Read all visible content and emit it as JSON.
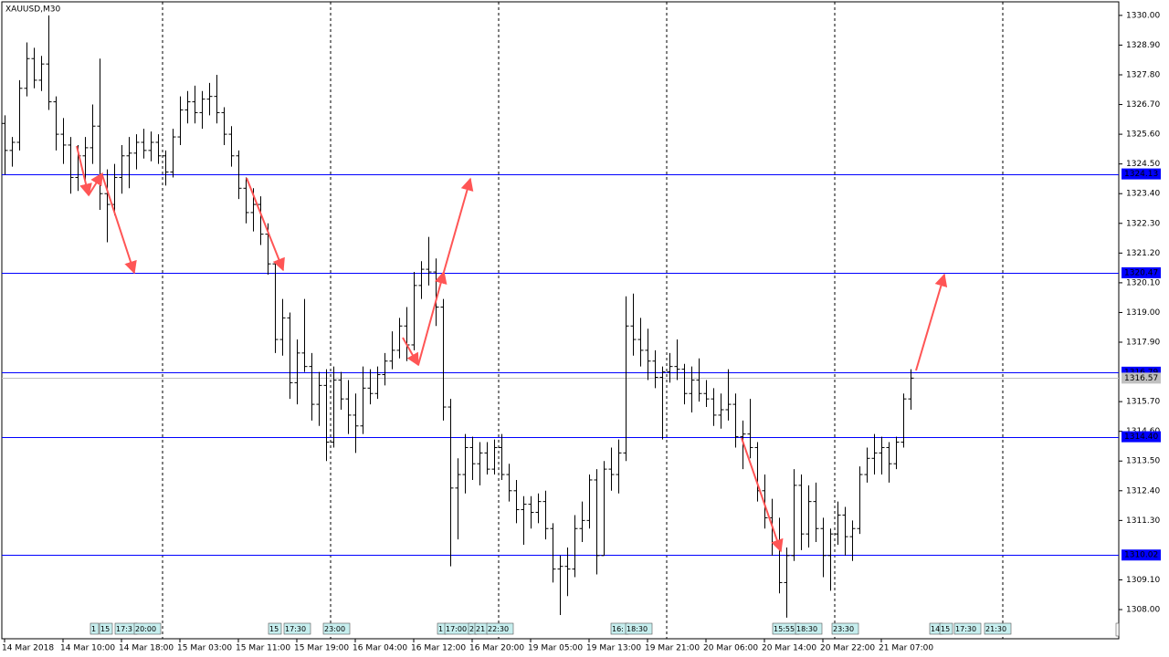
{
  "chart_data": {
    "type": "ohlc",
    "title": "XAUUSD,M30",
    "xlim": [
      -0.375,
      152.5
    ],
    "ylim": [
      1306.92,
      1330.57
    ],
    "xticks": [
      {
        "value": 0,
        "label": "14 Mar 2018"
      },
      {
        "value": 8,
        "label": "14 Mar 10:00"
      },
      {
        "value": 16,
        "label": "14 Mar 18:00"
      },
      {
        "value": 24,
        "label": "15 Mar 03:00"
      },
      {
        "value": 32,
        "label": "15 Mar 11:00"
      },
      {
        "value": 40,
        "label": "15 Mar 19:00"
      },
      {
        "value": 48,
        "label": "16 Mar 04:00"
      },
      {
        "value": 56,
        "label": "16 Mar 12:00"
      },
      {
        "value": 64,
        "label": "16 Mar 20:00"
      },
      {
        "value": 72,
        "label": "19 Mar 05:00"
      },
      {
        "value": 80,
        "label": "19 Mar 13:00"
      },
      {
        "value": 88,
        "label": "19 Mar 21:00"
      },
      {
        "value": 96,
        "label": "20 Mar 06:00"
      },
      {
        "value": 104,
        "label": "20 Mar 14:00"
      },
      {
        "value": 112,
        "label": "20 Mar 22:00"
      },
      {
        "value": 120,
        "label": "21 Mar 07:00"
      }
    ],
    "yticks": [
      {
        "value": 1330,
        "label": "1330.00"
      },
      {
        "value": 1328.9,
        "label": "1328.90"
      },
      {
        "value": 1327.8,
        "label": "1327.80"
      },
      {
        "value": 1326.7,
        "label": "1326.70"
      },
      {
        "value": 1325.6,
        "label": "1325.60"
      },
      {
        "value": 1324.5,
        "label": "1324.50"
      },
      {
        "value": 1323.4,
        "label": "1323.40"
      },
      {
        "value": 1322.3,
        "label": "1322.30"
      },
      {
        "value": 1321.2,
        "label": "1321.20"
      },
      {
        "value": 1320.1,
        "label": "1320.10"
      },
      {
        "value": 1319,
        "label": "1319.00"
      },
      {
        "value": 1317.9,
        "label": "1317.90"
      },
      {
        "value": 1315.7,
        "label": "1315.70"
      },
      {
        "value": 1314.6,
        "label": "1314.60"
      },
      {
        "value": 1313.5,
        "label": "1313.50"
      },
      {
        "value": 1312.4,
        "label": "1312.40"
      },
      {
        "value": 1311.3,
        "label": "1311.30"
      },
      {
        "value": 1309.1,
        "label": "1309.10"
      },
      {
        "value": 1308,
        "label": "1308.00"
      }
    ],
    "levels": [
      {
        "value": 1324.13,
        "label": "1324.13"
      },
      {
        "value": 1320.47,
        "label": "1320.47"
      },
      {
        "value": 1316.79,
        "label": "1316.79"
      },
      {
        "value": 1314.4,
        "label": "1314.40"
      },
      {
        "value": 1310.02,
        "label": "1310.02"
      }
    ],
    "level_color": "#0000ff",
    "bid": {
      "value": 1316.57,
      "label": "1316.57"
    },
    "bid_color": "#c0c0c0",
    "bar_color": "#000000",
    "events": [
      "1",
      "15",
      "17:3",
      "20:00",
      "15",
      "17:30",
      "23:00",
      "1",
      "17:00",
      "2",
      "21",
      "22:30",
      "16:",
      "18:30",
      "15:55",
      "18:30",
      "23:30",
      "14",
      "15",
      "17:30",
      "21:30"
    ],
    "bars": [
      [
        1326.0,
        1326.3,
        1324.1,
        1325.0
      ],
      [
        1325.0,
        1325.5,
        1324.4,
        1325.3
      ],
      [
        1325.3,
        1327.6,
        1325.0,
        1327.3
      ],
      [
        1327.3,
        1329.0,
        1327.0,
        1328.4
      ],
      [
        1328.4,
        1328.8,
        1327.3,
        1327.6
      ],
      [
        1327.6,
        1328.5,
        1327.2,
        1328.2
      ],
      [
        1328.2,
        1330.0,
        1326.5,
        1326.8
      ],
      [
        1326.8,
        1327.0,
        1325.0,
        1325.6
      ],
      [
        1325.6,
        1326.2,
        1324.5,
        1325.2
      ],
      [
        1325.2,
        1325.5,
        1323.4,
        1324.0
      ],
      [
        1324.0,
        1325.2,
        1323.5,
        1324.8
      ],
      [
        1324.8,
        1325.5,
        1323.8,
        1325.1
      ],
      [
        1325.1,
        1326.7,
        1324.5,
        1325.9
      ],
      [
        1325.9,
        1328.4,
        1322.8,
        1323.4
      ],
      [
        1323.4,
        1324.3,
        1321.6,
        1323.0
      ],
      [
        1323.0,
        1324.5,
        1322.6,
        1324.0
      ],
      [
        1324.0,
        1325.2,
        1323.4,
        1324.8
      ],
      [
        1324.8,
        1325.5,
        1323.6,
        1324.9
      ],
      [
        1324.9,
        1325.6,
        1324.3,
        1325.3
      ],
      [
        1325.3,
        1325.8,
        1324.7,
        1325.0
      ],
      [
        1325.0,
        1325.7,
        1324.6,
        1325.3
      ],
      [
        1325.3,
        1325.6,
        1324.5,
        1324.8
      ],
      [
        1324.8,
        1325.0,
        1323.7,
        1324.2
      ],
      [
        1324.2,
        1325.8,
        1324.0,
        1325.5
      ],
      [
        1325.5,
        1327.0,
        1325.2,
        1326.5
      ],
      [
        1326.5,
        1327.2,
        1326.0,
        1326.8
      ],
      [
        1326.8,
        1327.4,
        1326.0,
        1326.4
      ],
      [
        1326.4,
        1327.2,
        1325.8,
        1326.9
      ],
      [
        1326.9,
        1327.5,
        1326.3,
        1327.0
      ],
      [
        1327.0,
        1327.8,
        1326.0,
        1326.4
      ],
      [
        1326.4,
        1326.6,
        1325.2,
        1325.6
      ],
      [
        1325.6,
        1325.9,
        1324.4,
        1324.8
      ],
      [
        1324.8,
        1325.0,
        1323.2,
        1323.6
      ],
      [
        1323.6,
        1324.0,
        1322.3,
        1322.7
      ],
      [
        1322.7,
        1323.6,
        1322.0,
        1323.0
      ],
      [
        1323.0,
        1323.3,
        1321.5,
        1321.9
      ],
      [
        1321.9,
        1322.3,
        1320.4,
        1320.8
      ],
      [
        1320.8,
        1320.9,
        1317.5,
        1318.0
      ],
      [
        1318.0,
        1319.5,
        1317.4,
        1318.8
      ],
      [
        1318.8,
        1319.0,
        1315.8,
        1316.4
      ],
      [
        1316.4,
        1318.0,
        1315.6,
        1317.5
      ],
      [
        1317.5,
        1319.5,
        1316.8,
        1317.0
      ],
      [
        1317.0,
        1317.5,
        1315.0,
        1315.6
      ],
      [
        1315.6,
        1316.8,
        1314.8,
        1316.3
      ],
      [
        1316.3,
        1316.9,
        1313.5,
        1314.2
      ],
      [
        1314.2,
        1317.0,
        1314.0,
        1316.5
      ],
      [
        1316.5,
        1316.8,
        1315.4,
        1315.8
      ],
      [
        1315.8,
        1316.5,
        1314.5,
        1315.2
      ],
      [
        1315.2,
        1316.0,
        1313.8,
        1314.8
      ],
      [
        1314.8,
        1317.0,
        1314.5,
        1316.2
      ],
      [
        1316.2,
        1316.9,
        1315.6,
        1316.0
      ],
      [
        1316.0,
        1317.0,
        1315.8,
        1316.7
      ],
      [
        1316.7,
        1317.5,
        1316.3,
        1317.2
      ],
      [
        1317.2,
        1318.3,
        1316.9,
        1317.6
      ],
      [
        1317.6,
        1318.8,
        1317.3,
        1318.5
      ],
      [
        1318.5,
        1319.2,
        1317.2,
        1317.8
      ],
      [
        1317.8,
        1320.5,
        1317.6,
        1320.0
      ],
      [
        1320.0,
        1320.9,
        1319.5,
        1320.6
      ],
      [
        1320.6,
        1321.8,
        1320.0,
        1320.5
      ],
      [
        1320.5,
        1321.0,
        1318.5,
        1319.2
      ],
      [
        1319.2,
        1319.5,
        1315.0,
        1315.5
      ],
      [
        1315.5,
        1315.8,
        1309.6,
        1312.5
      ],
      [
        1312.5,
        1313.6,
        1310.6,
        1313.0
      ],
      [
        1313.0,
        1314.5,
        1312.3,
        1314.0
      ],
      [
        1314.0,
        1314.4,
        1312.8,
        1313.4
      ],
      [
        1313.4,
        1314.2,
        1312.6,
        1313.8
      ],
      [
        1313.8,
        1314.2,
        1313.0,
        1313.2
      ],
      [
        1313.2,
        1314.3,
        1313.0,
        1314.0
      ],
      [
        1314.0,
        1314.5,
        1312.8,
        1313.0
      ],
      [
        1313.0,
        1313.4,
        1312.0,
        1312.4
      ],
      [
        1312.4,
        1312.8,
        1311.2,
        1311.7
      ],
      [
        1311.7,
        1312.2,
        1310.4,
        1311.9
      ],
      [
        1311.9,
        1312.2,
        1311.0,
        1311.6
      ],
      [
        1311.6,
        1312.3,
        1311.2,
        1312.0
      ],
      [
        1312.0,
        1312.4,
        1310.6,
        1311.0
      ],
      [
        1311.0,
        1311.2,
        1309.0,
        1309.5
      ],
      [
        1309.5,
        1310.0,
        1307.8,
        1309.6
      ],
      [
        1309.6,
        1310.3,
        1308.5,
        1309.5
      ],
      [
        1309.5,
        1311.5,
        1309.2,
        1311.0
      ],
      [
        1311.0,
        1312.0,
        1310.5,
        1311.3
      ],
      [
        1311.3,
        1313.0,
        1311.0,
        1312.8
      ],
      [
        1312.8,
        1313.2,
        1309.3,
        1310.0
      ],
      [
        1310.0,
        1313.5,
        1310.0,
        1313.2
      ],
      [
        1313.2,
        1314.0,
        1312.4,
        1313.0
      ],
      [
        1313.0,
        1314.3,
        1312.3,
        1313.8
      ],
      [
        1313.8,
        1319.6,
        1313.5,
        1318.5
      ],
      [
        1318.5,
        1319.7,
        1317.4,
        1318.0
      ],
      [
        1318.0,
        1318.8,
        1317.0,
        1317.6
      ],
      [
        1317.6,
        1318.4,
        1316.5,
        1317.2
      ],
      [
        1317.2,
        1317.6,
        1316.2,
        1316.6
      ],
      [
        1316.6,
        1317.0,
        1314.3,
        1316.8
      ],
      [
        1316.8,
        1317.5,
        1316.4,
        1317.0
      ],
      [
        1317.0,
        1318.0,
        1316.5,
        1316.9
      ],
      [
        1316.9,
        1317.1,
        1315.6,
        1316.0
      ],
      [
        1316.0,
        1317.0,
        1315.3,
        1316.5
      ],
      [
        1316.5,
        1317.3,
        1315.7,
        1316.0
      ],
      [
        1316.0,
        1316.5,
        1315.5,
        1315.8
      ],
      [
        1315.8,
        1316.2,
        1314.8,
        1315.2
      ],
      [
        1315.2,
        1316.0,
        1314.7,
        1315.4
      ],
      [
        1315.4,
        1316.9,
        1315.0,
        1315.6
      ],
      [
        1315.6,
        1316.0,
        1314.0,
        1314.4
      ],
      [
        1314.4,
        1315.0,
        1313.2,
        1314.5
      ],
      [
        1314.5,
        1315.8,
        1313.6,
        1314.0
      ],
      [
        1314.0,
        1314.2,
        1312.0,
        1312.4
      ],
      [
        1312.4,
        1313.0,
        1311.0,
        1311.4
      ],
      [
        1311.4,
        1312.1,
        1310.0,
        1310.5
      ],
      [
        1310.5,
        1311.4,
        1308.6,
        1309.0
      ],
      [
        1309.0,
        1310.3,
        1307.7,
        1310.0
      ],
      [
        1310.0,
        1313.2,
        1309.8,
        1312.6
      ],
      [
        1312.6,
        1313.0,
        1310.2,
        1310.8
      ],
      [
        1310.8,
        1312.6,
        1310.3,
        1312.0
      ],
      [
        1312.0,
        1312.7,
        1310.5,
        1311.0
      ],
      [
        1311.0,
        1311.4,
        1309.2,
        1310.0
      ],
      [
        1310.0,
        1311.0,
        1308.7,
        1310.8
      ],
      [
        1310.8,
        1312.0,
        1310.4,
        1311.5
      ],
      [
        1311.5,
        1311.8,
        1310.0,
        1310.7
      ],
      [
        1310.7,
        1311.3,
        1309.8,
        1311.0
      ],
      [
        1311.0,
        1313.3,
        1310.8,
        1313.0
      ],
      [
        1313.0,
        1314.0,
        1312.7,
        1313.6
      ],
      [
        1313.6,
        1314.5,
        1313.0,
        1313.8
      ],
      [
        1313.8,
        1314.4,
        1313.0,
        1314.0
      ],
      [
        1314.0,
        1314.2,
        1312.7,
        1313.4
      ],
      [
        1313.4,
        1314.4,
        1313.2,
        1314.2
      ],
      [
        1314.2,
        1316.0,
        1314.0,
        1315.8
      ],
      [
        1315.8,
        1316.9,
        1315.4,
        1316.57
      ]
    ]
  }
}
